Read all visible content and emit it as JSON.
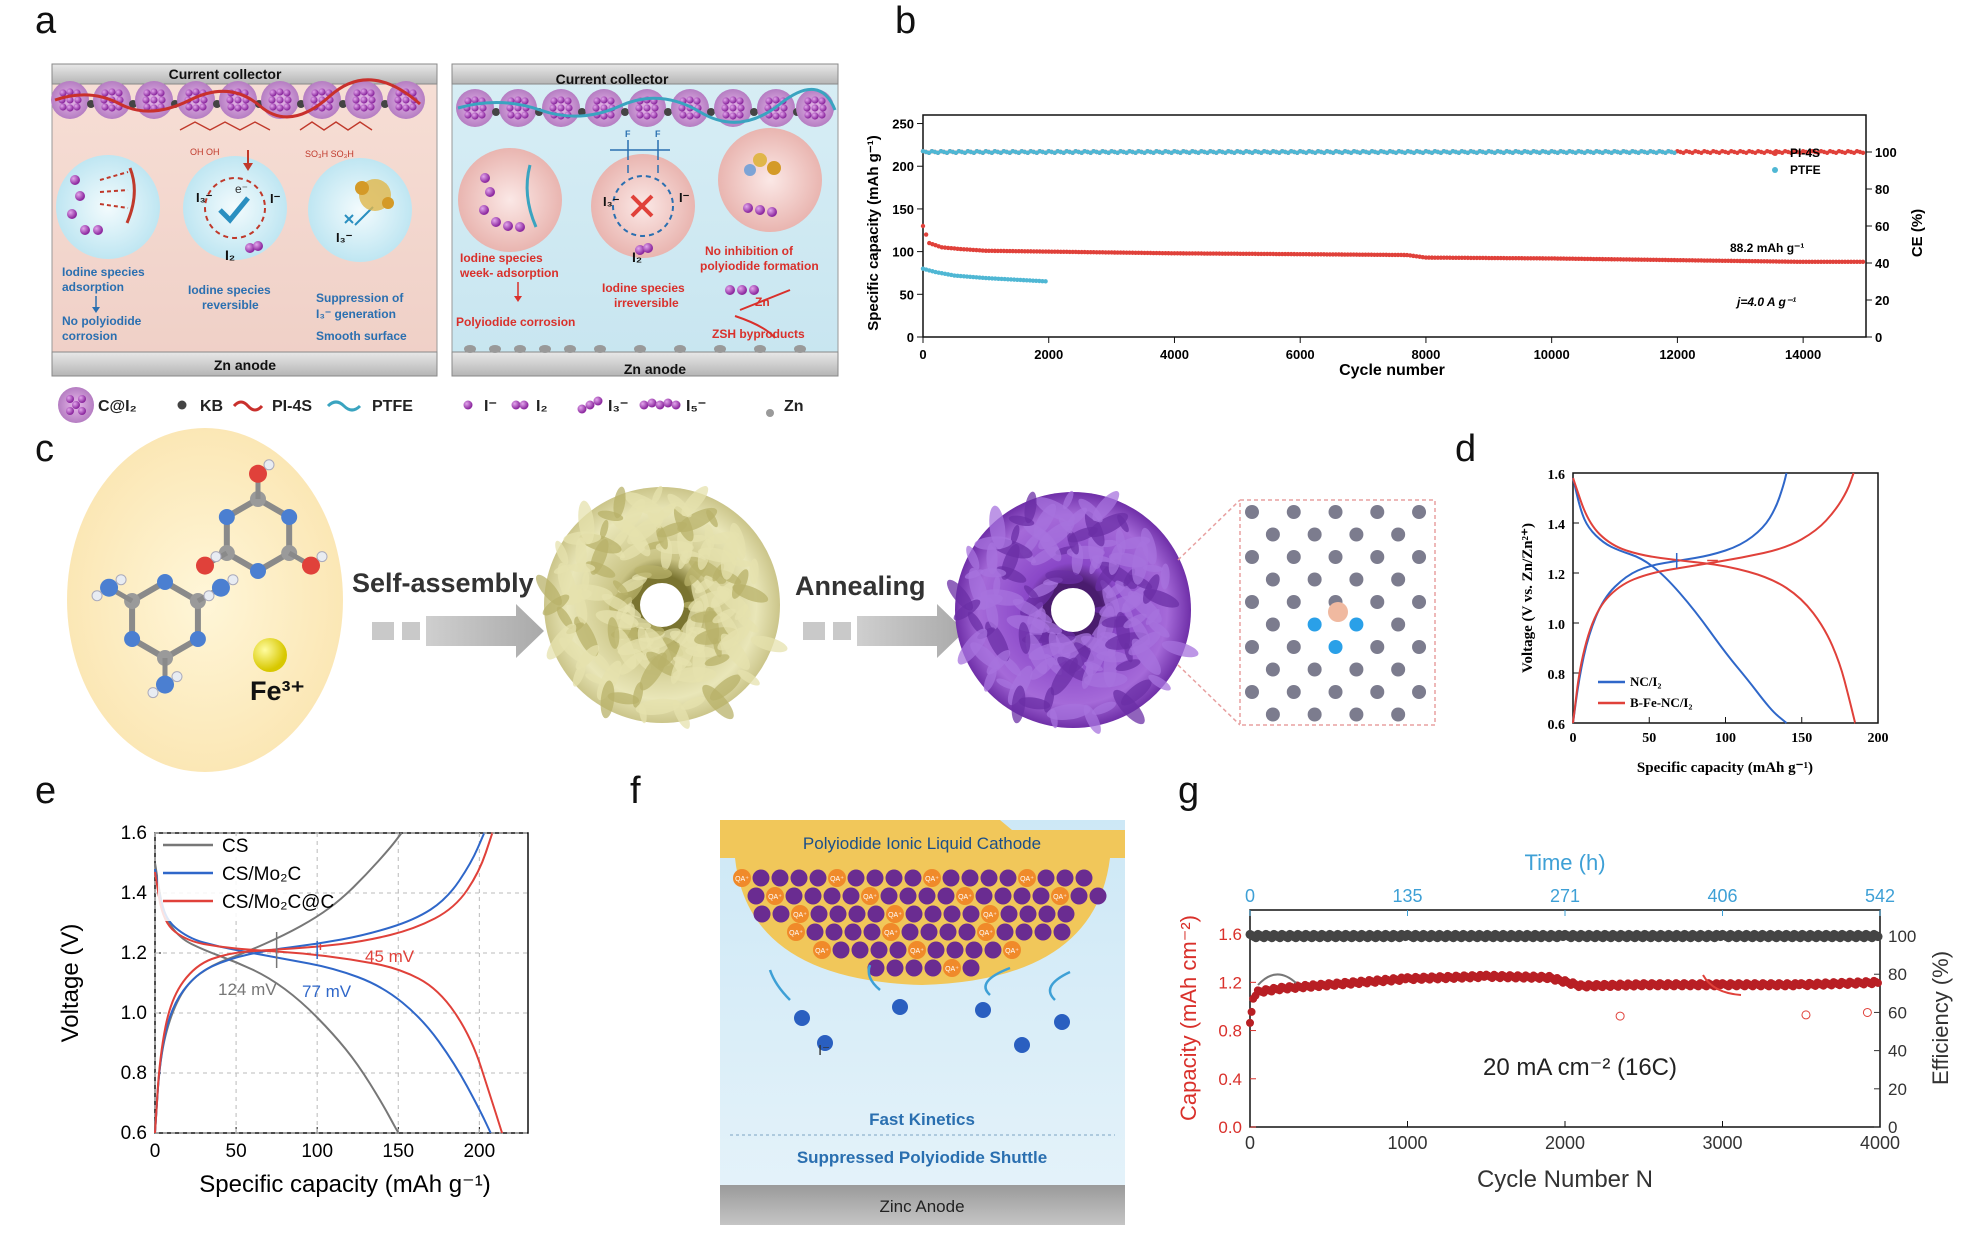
{
  "panel_labels": {
    "a": "a",
    "b": "b",
    "c": "c",
    "d": "d",
    "e": "e",
    "f": "f",
    "g": "g"
  },
  "panel_a": {
    "left": {
      "collector": "Current  collector",
      "anode": "Zn anode",
      "c1": [
        "Iodine species",
        "adsorption",
        "No polyiodide",
        "corrosion"
      ],
      "c2": [
        "Iodine species",
        "reversible"
      ],
      "c3": [
        "Suppression of",
        "I₃⁻ generation",
        "Smooth surface"
      ],
      "i3": "I₃⁻",
      "i": "I⁻",
      "i2": "I₂",
      "e": "e⁻",
      "i3b": "I₃⁻",
      "chem1": "OH  OH",
      "chem2": "SO₃H  SO₃H"
    },
    "right": {
      "collector": "Current  collector",
      "anode": "Zn anode",
      "c1": [
        "Iodine species",
        "week- adsorption",
        "Polyiodide corrosion"
      ],
      "c2": [
        "Iodine species",
        "irreversible"
      ],
      "c3": [
        "No inhibition of",
        "polyiodide formation"
      ],
      "zn": "Zn",
      "zsh": "ZSH  byproducts",
      "i3": "I₃⁻",
      "i": "I⁻",
      "i2": "I₂",
      "f": "F"
    },
    "legend": [
      "C@I₂",
      "KB",
      "PI-4S",
      "PTFE",
      "I⁻",
      "I₂",
      "I₃⁻",
      "I₅⁻",
      "Zn"
    ]
  },
  "panel_b": {
    "ylabel": "Specific capacity (mAh g⁻¹)",
    "y2label": "CE (%)",
    "xlabel": "Cycle number",
    "yticks": [
      "0",
      "50",
      "100",
      "150",
      "200",
      "250"
    ],
    "y2ticks": [
      "0",
      "20",
      "40",
      "60",
      "80",
      "100"
    ],
    "xticks": [
      "0",
      "2000",
      "4000",
      "6000",
      "8000",
      "10000",
      "12000",
      "14000"
    ],
    "legend": [
      "PI-4S",
      "PTFE"
    ],
    "annot1": "88.2 mAh g⁻¹",
    "annot2": "j=4.0 A g⁻¹"
  },
  "panel_c": {
    "step1": "Self-assembly",
    "step2": "Annealing",
    "ion": "Fe³⁺"
  },
  "panel_d": {
    "ylabel": "Voltage (V vs. Zn/Zn²⁺)",
    "xlabel": "Specific capacity (mAh g⁻¹)",
    "yticks": [
      "0.6",
      "0.8",
      "1.0",
      "1.2",
      "1.4",
      "1.6"
    ],
    "xticks": [
      "0",
      "50",
      "100",
      "150",
      "200"
    ],
    "legend": [
      "NC/I₂",
      "B-Fe-NC/I₂"
    ]
  },
  "panel_e": {
    "ylabel": "Voltage (V)",
    "xlabel": "Specific capacity (mAh g⁻¹)",
    "yticks": [
      "0.6",
      "0.8",
      "1.0",
      "1.2",
      "1.4",
      "1.6"
    ],
    "xticks": [
      "0",
      "50",
      "100",
      "150",
      "200"
    ],
    "legend": [
      "CS",
      "CS/Mo₂C",
      "CS/Mo₂C@C"
    ],
    "annot_cs": "124 mV",
    "annot_mo2c": "77 mV",
    "annot_mo2cc": "45 mV"
  },
  "panel_f": {
    "top": "Polyiodide Ionic Liquid Cathode",
    "ion": "QA⁺",
    "iodide": "I⁻",
    "line1": "Fast Kinetics",
    "line2": "Suppressed Polyiodide Shuttle",
    "anode": "Zinc Anode"
  },
  "panel_g": {
    "toplabel": "Time (h)",
    "topticks": [
      "0",
      "135",
      "271",
      "406",
      "542"
    ],
    "ylabel": "Capacity (mAh cm⁻²)",
    "y2label": "Efficiency (%)",
    "xlabel": "Cycle Number N",
    "yticks": [
      "0.0",
      "0.4",
      "0.8",
      "1.2",
      "1.6"
    ],
    "y2ticks": [
      "0",
      "20",
      "40",
      "60",
      "80",
      "100"
    ],
    "xticks": [
      "0",
      "1000",
      "2000",
      "3000",
      "4000"
    ],
    "annot": "20 mA cm⁻² (16C)"
  },
  "colors": {
    "red": "#e0413a",
    "cyan": "#4fb7d4",
    "blue": "#2f67c9",
    "grey": "#777777",
    "purple": "#a640b8",
    "gold": "#f3cd4e",
    "darkred": "#b81f24"
  },
  "chart_data": [
    {
      "type": "scatter",
      "panel": "b",
      "xlabel": "Cycle number",
      "ylabel": "Specific capacity (mAh g⁻¹)",
      "y2label": "CE (%)",
      "xlim": [
        0,
        15000
      ],
      "ylim": [
        0,
        260
      ],
      "y2lim": [
        0,
        120
      ],
      "series": [
        {
          "name": "PI-4S",
          "axis": "capacity",
          "x": [
            0,
            100,
            300,
            600,
            1000,
            2000,
            4000,
            6000,
            7700,
            8000,
            10000,
            12000,
            14000,
            15000
          ],
          "y": [
            130,
            110,
            105,
            103,
            101,
            100,
            98,
            97,
            96,
            93,
            92,
            90,
            88,
            88
          ]
        },
        {
          "name": "PTFE",
          "axis": "capacity",
          "x": [
            0,
            200,
            500,
            1000,
            1500,
            2000
          ],
          "y": [
            80,
            76,
            72,
            69,
            67,
            65
          ]
        },
        {
          "name": "PI-4S",
          "axis": "CE",
          "x": [
            0,
            5000,
            10000,
            15000
          ],
          "y": [
            100,
            100,
            100,
            100
          ]
        },
        {
          "name": "PTFE",
          "axis": "CE",
          "x": [
            0,
            4000,
            8000,
            12000
          ],
          "y": [
            100,
            100,
            100,
            100
          ]
        }
      ]
    },
    {
      "type": "line",
      "panel": "d",
      "xlabel": "Specific capacity (mAh g⁻¹)",
      "ylabel": "Voltage (V vs. Zn/Zn²⁺)",
      "xlim": [
        0,
        200
      ],
      "ylim": [
        0.6,
        1.6
      ],
      "series": [
        {
          "name": "NC/I₂",
          "x": [
            0,
            5,
            10,
            20,
            30,
            45,
            60,
            80,
            100,
            115,
            125,
            132,
            138,
            140
          ],
          "y": [
            1.58,
            1.45,
            1.38,
            1.32,
            1.29,
            1.26,
            1.19,
            1.05,
            0.88,
            0.77,
            0.69,
            0.64,
            0.61,
            0.6
          ]
        },
        {
          "name": "NC/I₂",
          "x": [
            0,
            4,
            10,
            20,
            35,
            50,
            70,
            90,
            110,
            125,
            133,
            138,
            140
          ],
          "y": [
            0.6,
            0.78,
            0.95,
            1.1,
            1.19,
            1.23,
            1.25,
            1.27,
            1.31,
            1.38,
            1.46,
            1.55,
            1.6
          ]
        },
        {
          "name": "B-Fe-NC/I₂",
          "x": [
            0,
            10,
            25,
            45,
            70,
            100,
            130,
            150,
            165,
            175,
            181,
            185
          ],
          "y": [
            1.58,
            1.4,
            1.31,
            1.27,
            1.25,
            1.23,
            1.18,
            1.1,
            0.98,
            0.84,
            0.7,
            0.6
          ]
        },
        {
          "name": "B-Fe-NC/I₂",
          "x": [
            0,
            5,
            15,
            30,
            50,
            80,
            110,
            140,
            160,
            172,
            180,
            184
          ],
          "y": [
            0.6,
            0.85,
            1.05,
            1.15,
            1.2,
            1.23,
            1.26,
            1.3,
            1.37,
            1.45,
            1.53,
            1.6
          ]
        }
      ]
    },
    {
      "type": "line",
      "panel": "e",
      "xlabel": "Specific capacity (mAh g⁻¹)",
      "ylabel": "Voltage (V)",
      "xlim": [
        0,
        230
      ],
      "ylim": [
        0.6,
        1.6
      ],
      "series": [
        {
          "name": "CS",
          "x": [
            0,
            5,
            15,
            30,
            50,
            70,
            90,
            110,
            125,
            140,
            150
          ],
          "y": [
            1.5,
            1.33,
            1.25,
            1.21,
            1.17,
            1.12,
            1.04,
            0.93,
            0.83,
            0.7,
            0.6
          ]
        },
        {
          "name": "CS",
          "x": [
            0,
            3,
            10,
            20,
            35,
            55,
            80,
            100,
            115,
            130,
            145,
            152
          ],
          "y": [
            0.6,
            0.85,
            1.0,
            1.1,
            1.16,
            1.2,
            1.26,
            1.32,
            1.38,
            1.46,
            1.55,
            1.6
          ]
        },
        {
          "name": "CS/Mo₂C",
          "x": [
            0,
            5,
            20,
            40,
            60,
            80,
            110,
            140,
            165,
            185,
            200,
            207
          ],
          "y": [
            1.48,
            1.32,
            1.25,
            1.22,
            1.2,
            1.18,
            1.15,
            1.09,
            0.98,
            0.83,
            0.68,
            0.6
          ]
        },
        {
          "name": "CS/Mo₂C",
          "x": [
            0,
            3,
            10,
            25,
            45,
            70,
            100,
            130,
            160,
            180,
            195,
            203
          ],
          "y": [
            0.6,
            0.85,
            1.02,
            1.13,
            1.18,
            1.21,
            1.23,
            1.26,
            1.31,
            1.38,
            1.5,
            1.6
          ]
        },
        {
          "name": "CS/Mo₂C@C",
          "x": [
            0,
            5,
            20,
            40,
            60,
            90,
            120,
            150,
            175,
            195,
            207,
            214
          ],
          "y": [
            1.47,
            1.3,
            1.24,
            1.22,
            1.21,
            1.2,
            1.18,
            1.15,
            1.08,
            0.92,
            0.72,
            0.6
          ]
        },
        {
          "name": "CS/Mo₂C@C",
          "x": [
            0,
            3,
            10,
            25,
            45,
            70,
            100,
            130,
            160,
            185,
            200,
            208
          ],
          "y": [
            0.6,
            0.86,
            1.05,
            1.16,
            1.2,
            1.21,
            1.22,
            1.24,
            1.28,
            1.35,
            1.47,
            1.6
          ]
        }
      ]
    },
    {
      "type": "scatter",
      "panel": "g",
      "xlabel": "Cycle Number N",
      "ylabel": "Capacity (mAh cm⁻²)",
      "y2label": "Efficiency (%)",
      "xlim": [
        0,
        4000
      ],
      "ylim": [
        0,
        1.8
      ],
      "y2lim": [
        0,
        100
      ],
      "series": [
        {
          "name": "Capacity",
          "x": [
            0,
            20,
            50,
            200,
            500,
            1000,
            1500,
            1900,
            2100,
            2500,
            3000,
            3500,
            4000
          ],
          "y": [
            0.85,
            1.05,
            1.12,
            1.15,
            1.18,
            1.23,
            1.25,
            1.24,
            1.17,
            1.18,
            1.18,
            1.18,
            1.2
          ]
        },
        {
          "name": "Efficiency",
          "x": [
            0,
            1000,
            2000,
            3000,
            4000
          ],
          "y": [
            100,
            100,
            100,
            100,
            100
          ]
        }
      ]
    }
  ]
}
